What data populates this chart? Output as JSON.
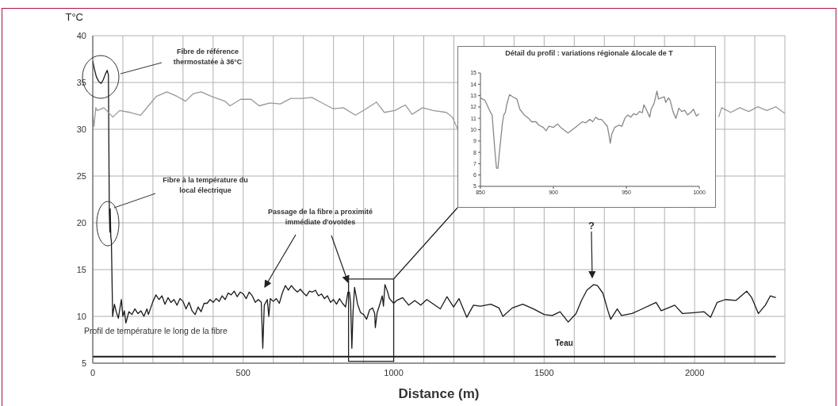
{
  "chart_data": [
    {
      "type": "line",
      "xlabel": "Distance (m)",
      "ylabel": "T°C",
      "xlim": [
        0,
        2300
      ],
      "xticks": [
        0,
        {
          "value": 100,
          "label": null
        },
        {
          "value": 200,
          "label": null
        },
        {
          "value": 300,
          "label": null
        },
        {
          "value": 400,
          "label": null
        },
        500,
        {
          "value": 600,
          "label": null
        },
        {
          "value": 700,
          "label": null
        },
        {
          "value": 800,
          "label": null
        },
        {
          "value": 900,
          "label": null
        },
        1000,
        {
          "value": 1100,
          "label": null
        },
        {
          "value": 1200,
          "label": null
        },
        {
          "value": 1300,
          "label": null
        },
        {
          "value": 1400,
          "label": null
        },
        1500,
        {
          "value": 1600,
          "label": null
        },
        {
          "value": 1700,
          "label": null
        },
        {
          "value": 1800,
          "label": null
        },
        {
          "value": 1900,
          "label": null
        },
        2000,
        {
          "value": 2100,
          "label": null
        },
        {
          "value": 2200,
          "label": null
        }
      ],
      "ylim": [
        5,
        40
      ],
      "yticks": [
        5,
        10,
        15,
        20,
        25,
        30,
        35,
        40
      ],
      "grid": true,
      "series": [
        {
          "color": "#1a1a1a",
          "x": [
            0,
            5,
            12,
            20,
            28,
            35,
            42,
            48,
            52,
            55,
            57,
            58,
            60,
            62,
            66,
            72,
            78,
            85,
            95,
            100,
            105,
            110,
            120,
            130,
            140,
            150,
            160,
            170,
            180,
            185,
            200,
            210,
            220,
            230,
            240,
            250,
            260,
            270,
            280,
            290,
            300,
            310,
            320,
            330,
            340,
            350,
            360,
            370,
            380,
            390,
            400,
            410,
            420,
            430,
            440,
            450,
            460,
            470,
            480,
            490,
            500,
            510,
            520,
            530,
            540,
            550,
            560,
            565,
            570,
            580,
            585,
            590,
            600,
            610,
            620,
            630,
            640,
            650,
            660,
            670,
            680,
            690,
            700,
            710,
            720,
            730,
            740,
            750,
            760,
            770,
            780,
            790,
            800,
            810,
            820,
            830,
            840,
            848,
            853,
            857,
            861,
            865,
            870,
            880,
            890,
            900,
            910,
            920,
            930,
            937,
            939,
            945,
            955,
            962,
            966,
            971,
            980,
            986,
            1000,
            1010,
            1030,
            1050,
            1070,
            1090,
            1110,
            1155,
            1177,
            1199,
            1217,
            1243,
            1265,
            1288,
            1323,
            1350,
            1363,
            1394,
            1429,
            1465,
            1500,
            1527,
            1553,
            1580,
            1606,
            1624,
            1642,
            1664,
            1677,
            1695,
            1712,
            1721,
            1743,
            1757,
            1792,
            1819,
            1872,
            1889,
            1934,
            1960,
            1996,
            2031,
            2053,
            2075,
            2102,
            2137,
            2173,
            2190,
            2212,
            2235,
            2252,
            2270
          ],
          "values": [
            37.3,
            36.5,
            35.6,
            35.1,
            34.9,
            35.3,
            35.9,
            36.3,
            35.8,
            21,
            19,
            21.5,
            18.5,
            18,
            10,
            11.3,
            10.5,
            9.8,
            11.8,
            10,
            10.6,
            9.3,
            10.5,
            10.2,
            10.8,
            10.3,
            10.6,
            10,
            10.8,
            10.2,
            11.6,
            12.3,
            11.8,
            12.2,
            11.3,
            12,
            11.5,
            11.8,
            11.2,
            11.9,
            11.6,
            10.8,
            11.5,
            10.6,
            10.2,
            11,
            10.5,
            11.4,
            11.4,
            11.8,
            11.5,
            11.9,
            11.6,
            12.2,
            11.8,
            12.5,
            12.3,
            12.7,
            12.1,
            12.6,
            12.4,
            11.9,
            12.6,
            12.2,
            11.5,
            11.8,
            11.5,
            6.6,
            11.2,
            11.8,
            10,
            11.9,
            11.6,
            11.9,
            11.4,
            12.5,
            13.3,
            12.8,
            13.3,
            12.9,
            12.6,
            12.9,
            12.5,
            12.2,
            12.7,
            12.6,
            12.8,
            12.2,
            12.4,
            11.9,
            12.2,
            11.5,
            11.8,
            11.3,
            11.9,
            11.4,
            11,
            12.6,
            12.6,
            11.4,
            6.6,
            10.5,
            13.1,
            11.3,
            10.4,
            10.2,
            9.7,
            10.7,
            10.9,
            10.3,
            8.8,
            10.4,
            11.4,
            12.2,
            11.1,
            13.4,
            12.6,
            11.9,
            11.4,
            11.7,
            12,
            11.2,
            11.7,
            11.2,
            11.8,
            10.8,
            12.1,
            11,
            11.9,
            9.9,
            11.2,
            11.1,
            11.3,
            10.9,
            10,
            10.9,
            11.3,
            10.8,
            10.2,
            10.1,
            10.5,
            9.4,
            10.3,
            11.7,
            12.8,
            13.4,
            13.3,
            12.5,
            10.6,
            9.7,
            10.8,
            10.1,
            10.3,
            10.7,
            11.5,
            10.6,
            11.2,
            10.3,
            10.4,
            10.5,
            9.9,
            11.5,
            11.8,
            11.7,
            12.7,
            12,
            10.3,
            11.2,
            12.2,
            12
          ]
        },
        {
          "color": "#999999",
          "x": [
            0,
            4,
            10,
            15,
            37,
            67,
            89,
            124,
            159,
            185,
            211,
            246,
            281,
            308,
            334,
            360,
            395,
            439,
            456,
            491,
            526,
            553,
            588,
            623,
            658,
            693,
            728,
            763,
            798,
            833,
            873,
            904,
            943,
            969,
            1004,
            1039,
            1061,
            1096,
            1131,
            1175,
            1195,
            1213,
            1300,
            2080,
            2090,
            2120,
            2150,
            2180,
            2210,
            2240,
            2270,
            2300
          ],
          "values": [
            31.5,
            30.3,
            32.3,
            32,
            32.3,
            31.3,
            32,
            31.8,
            31.5,
            32.5,
            33.5,
            34,
            33.5,
            33,
            33.8,
            34,
            33.5,
            33,
            32.5,
            33.2,
            33.2,
            32.5,
            32.8,
            32.7,
            33.3,
            33.3,
            33.4,
            32.8,
            32.2,
            32.3,
            31.5,
            32.1,
            32.9,
            31.8,
            32,
            32.6,
            31.6,
            32.3,
            32,
            31.8,
            31.3,
            30,
            null,
            31.3,
            32.3,
            31.8,
            32.3,
            31.9,
            32.4,
            32,
            32.4,
            31.7
          ]
        },
        {
          "name": "Teau",
          "color": "#1a1a1a",
          "x": [
            0,
            2270
          ],
          "values": [
            5.7,
            5.7
          ]
        }
      ],
      "annotations": [
        "Fibre de référence thermostatée à 36°C",
        "Fibre à la température du local électrique",
        "Passage de la fibre a proximité immédiate d'ovoïdes",
        "?",
        "Profil de température le long de la fibre"
      ]
    },
    {
      "type": "line",
      "title": "Détail du profil : variations régionale &locale de T",
      "xlim": [
        850,
        1000
      ],
      "xticks": [
        850,
        900,
        950,
        1000
      ],
      "ylim": [
        5,
        15
      ],
      "yticks": [
        5,
        6,
        7,
        8,
        9,
        10,
        11,
        12,
        13,
        14,
        15
      ],
      "series": [
        {
          "color": "#888888",
          "x": [
            850,
            853,
            857,
            858,
            860,
            861,
            862,
            863,
            865,
            866,
            867,
            868,
            870,
            872,
            875,
            877,
            880,
            883,
            885,
            888,
            890,
            893,
            895,
            897,
            900,
            903,
            905,
            907,
            910,
            912,
            915,
            918,
            920,
            922,
            925,
            927,
            929,
            931,
            933,
            935,
            937,
            938,
            939,
            940,
            942,
            945,
            947,
            949,
            951,
            953,
            955,
            957,
            959,
            961,
            962,
            964,
            966,
            967,
            969,
            971,
            972,
            974,
            976,
            977,
            979,
            980,
            982,
            984,
            986,
            988,
            990,
            992,
            994,
            996,
            998,
            1000
          ],
          "values": [
            12.8,
            12.6,
            11.5,
            11.3,
            8,
            6.6,
            6.6,
            8,
            10.5,
            11.3,
            11.5,
            12.2,
            13.1,
            12.9,
            12.7,
            11.8,
            11.3,
            11,
            10.7,
            10.7,
            10.4,
            10.2,
            9.9,
            10.3,
            10.2,
            10.5,
            10.2,
            10,
            9.7,
            9.9,
            10.2,
            10.5,
            10.7,
            10.6,
            10.9,
            10.7,
            11.1,
            10.9,
            10.9,
            10.6,
            10.3,
            9.6,
            8.8,
            9.6,
            10.2,
            10.4,
            10.3,
            11,
            11.3,
            11.1,
            11.4,
            11.3,
            11.6,
            11.5,
            12.2,
            11.7,
            11.1,
            11.8,
            12.3,
            13.4,
            12.7,
            12.8,
            12.9,
            12.4,
            12.8,
            12.6,
            11.6,
            11,
            11.9,
            11.6,
            11.7,
            11.3,
            11.5,
            11.8,
            11.2,
            11.4
          ]
        }
      ]
    }
  ]
}
